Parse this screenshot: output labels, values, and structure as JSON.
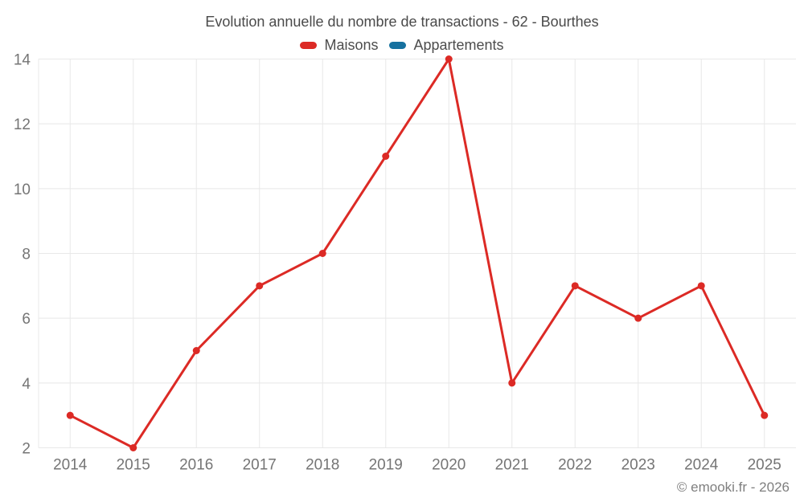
{
  "chart_data": {
    "type": "line",
    "title": "Evolution annuelle du nombre de transactions - 62 - Bourthes",
    "categories": [
      "2014",
      "2015",
      "2016",
      "2017",
      "2018",
      "2019",
      "2020",
      "2021",
      "2022",
      "2023",
      "2024",
      "2025"
    ],
    "series": [
      {
        "name": "Maisons",
        "color": "#dc2a25",
        "values": [
          3,
          2,
          5,
          7,
          8,
          11,
          14,
          4,
          7,
          6,
          7,
          3
        ]
      },
      {
        "name": "Appartements",
        "color": "#16719f",
        "values": []
      }
    ],
    "xlabel": "",
    "ylabel": "",
    "ylim": [
      2,
      14
    ],
    "yticks": [
      2,
      4,
      6,
      8,
      10,
      12,
      14
    ],
    "grid": true,
    "legend_position": "top"
  },
  "footer": {
    "text": "© emooki.fr - 2026"
  },
  "colors": {
    "grid": "#e8e8e8",
    "tick_text": "#757575",
    "title_text": "#4a4a4a",
    "footer_text": "#7f7f7f"
  }
}
